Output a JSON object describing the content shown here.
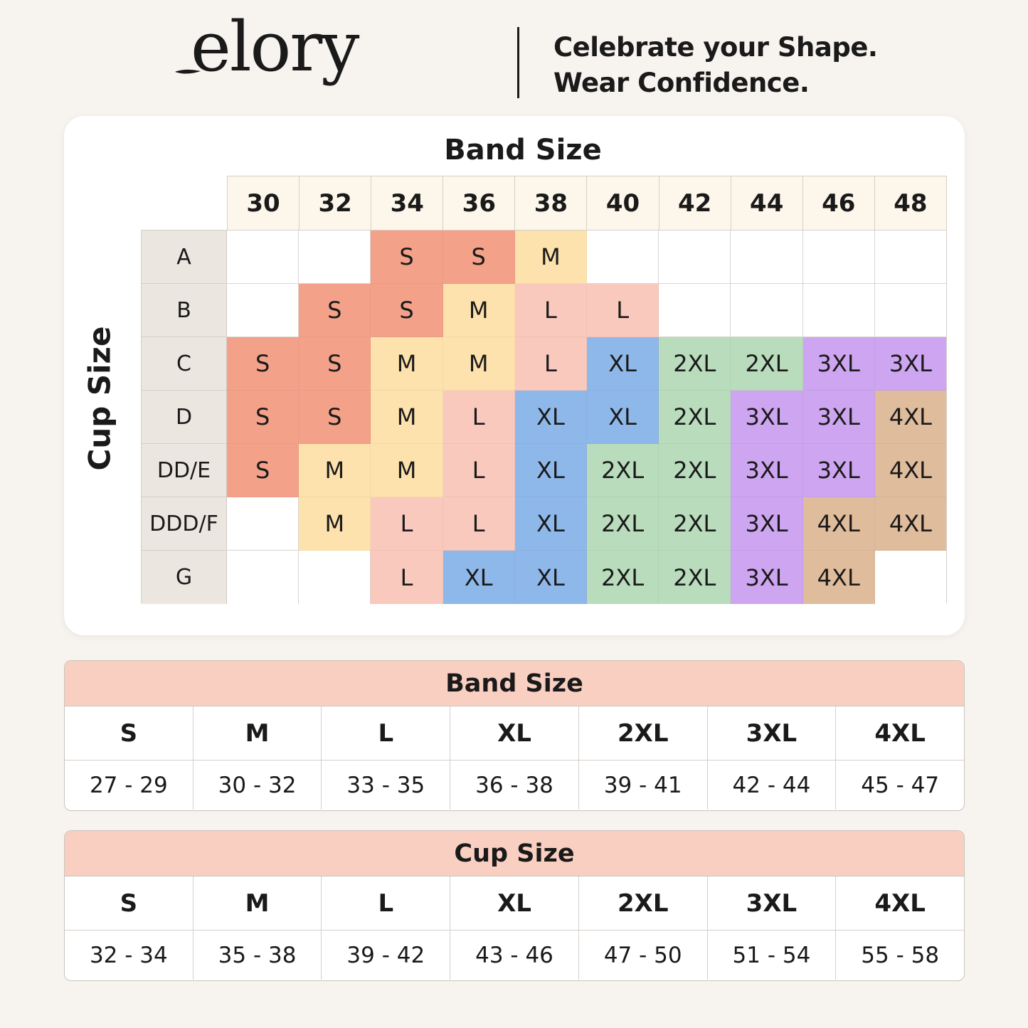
{
  "brand": {
    "logo_text": "elory"
  },
  "tagline": {
    "line1": "Celebrate your Shape.",
    "line2": "Wear Confidence."
  },
  "chart": {
    "band_title": "Band Size",
    "cup_title": "Cup Size",
    "bands": [
      "30",
      "32",
      "34",
      "36",
      "38",
      "40",
      "42",
      "44",
      "46",
      "48"
    ],
    "rows": [
      {
        "cup": "A",
        "cells": [
          "",
          "",
          "S",
          "S",
          "M",
          "",
          "",
          "",
          "",
          ""
        ]
      },
      {
        "cup": "B",
        "cells": [
          "",
          "S",
          "S",
          "M",
          "L",
          "L",
          "",
          "",
          "",
          ""
        ]
      },
      {
        "cup": "C",
        "cells": [
          "S",
          "S",
          "M",
          "M",
          "L",
          "XL",
          "2XL",
          "2XL",
          "3XL",
          "3XL"
        ]
      },
      {
        "cup": "D",
        "cells": [
          "S",
          "S",
          "M",
          "L",
          "XL",
          "XL",
          "2XL",
          "3XL",
          "3XL",
          "4XL"
        ]
      },
      {
        "cup": "DD/E",
        "cells": [
          "S",
          "M",
          "M",
          "L",
          "XL",
          "2XL",
          "2XL",
          "3XL",
          "3XL",
          "4XL"
        ]
      },
      {
        "cup": "DDD/F",
        "cells": [
          "",
          "M",
          "L",
          "L",
          "XL",
          "2XL",
          "2XL",
          "3XL",
          "4XL",
          "4XL"
        ]
      },
      {
        "cup": "G",
        "cells": [
          "",
          "",
          "L",
          "XL",
          "XL",
          "2XL",
          "2XL",
          "3XL",
          "4XL",
          ""
        ]
      }
    ],
    "size_colors": {
      "S": "#f4a18a",
      "M": "#fde2ad",
      "L": "#fac9bd",
      "XL": "#8fb8ea",
      "2XL": "#b9dcbd",
      "3XL": "#cea5f0",
      "4XL": "#dfbc9c"
    }
  },
  "band_table": {
    "title": "Band Size",
    "sizes": [
      "S",
      "M",
      "L",
      "XL",
      "2XL",
      "3XL",
      "4XL"
    ],
    "ranges": [
      "27 - 29",
      "30 - 32",
      "33 - 35",
      "36 - 38",
      "39 - 41",
      "42 - 44",
      "45 - 47"
    ]
  },
  "cup_table": {
    "title": "Cup Size",
    "sizes": [
      "S",
      "M",
      "L",
      "XL",
      "2XL",
      "3XL",
      "4XL"
    ],
    "ranges": [
      "32 - 34",
      "35 - 38",
      "39 - 42",
      "43 - 46",
      "47 - 50",
      "51 - 54",
      "55 - 58"
    ]
  }
}
